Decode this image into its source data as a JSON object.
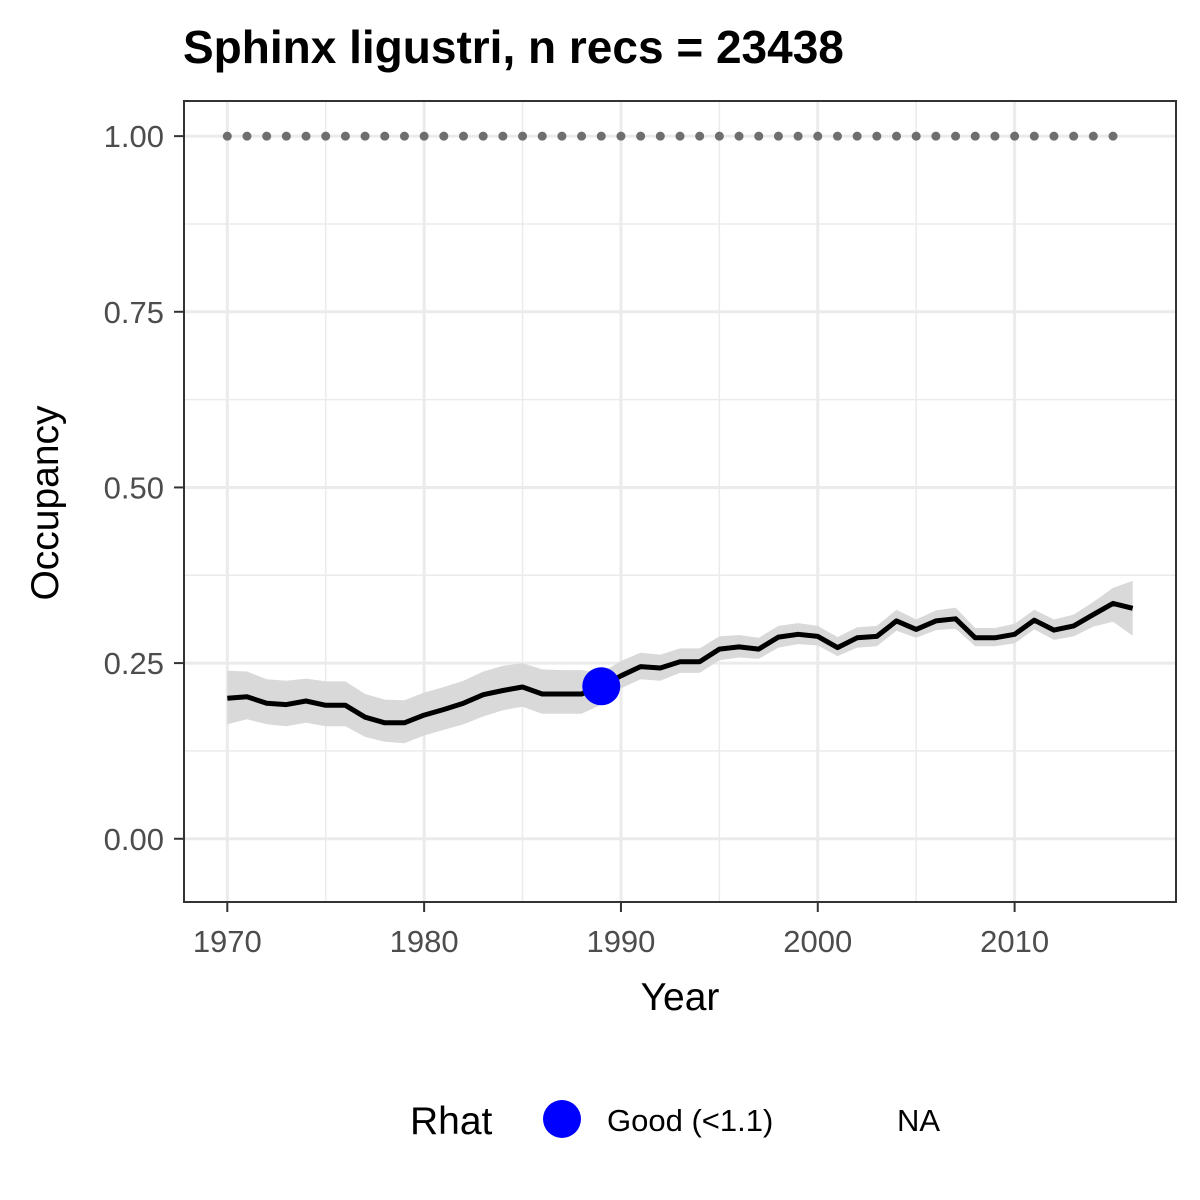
{
  "chart_data": {
    "type": "line",
    "title": "Sphinx ligustri, n recs = 23438",
    "xlabel": "Year",
    "ylabel": "Occupancy",
    "xlim": [
      1967.8,
      2018.2
    ],
    "ylim": [
      -0.09,
      1.05
    ],
    "x_ticks": [
      1970,
      1980,
      1990,
      2000,
      2010
    ],
    "x_tick_labels": [
      "1970",
      "1980",
      "1990",
      "2000",
      "2010"
    ],
    "y_ticks": [
      0,
      0.25,
      0.5,
      0.75,
      1.0
    ],
    "y_tick_labels": [
      "0.00",
      "0.25",
      "0.50",
      "0.75",
      "1.00"
    ],
    "grid": true,
    "colors": {
      "line": "#000000",
      "ribbon": "#d9d9d9",
      "reference_dots": "#6e6e6e",
      "good_point": "#0000ff",
      "panel_border": "#333333",
      "grid": "#ebebeb"
    },
    "series": [
      {
        "name": "Occupancy",
        "x": [
          1970,
          1971,
          1972,
          1973,
          1974,
          1975,
          1976,
          1977,
          1978,
          1979,
          1980,
          1981,
          1982,
          1983,
          1984,
          1985,
          1986,
          1987,
          1988,
          1989,
          1990,
          1991,
          1992,
          1993,
          1994,
          1995,
          1996,
          1997,
          1998,
          1999,
          2000,
          2001,
          2002,
          2003,
          2004,
          2005,
          2006,
          2007,
          2008,
          2009,
          2010,
          2011,
          2012,
          2013,
          2014,
          2015,
          2016
        ],
        "y": [
          0.2,
          0.202,
          0.193,
          0.191,
          0.196,
          0.19,
          0.19,
          0.173,
          0.165,
          0.165,
          0.176,
          0.184,
          0.193,
          0.205,
          0.211,
          0.216,
          0.206,
          0.206,
          0.206,
          0.217,
          0.232,
          0.245,
          0.243,
          0.252,
          0.252,
          0.27,
          0.273,
          0.27,
          0.287,
          0.291,
          0.288,
          0.272,
          0.286,
          0.288,
          0.31,
          0.298,
          0.31,
          0.313,
          0.286,
          0.286,
          0.291,
          0.311,
          0.297,
          0.303,
          0.319,
          0.335,
          0.328
        ],
        "lower": [
          0.163,
          0.17,
          0.163,
          0.16,
          0.165,
          0.16,
          0.16,
          0.145,
          0.138,
          0.136,
          0.147,
          0.155,
          0.163,
          0.174,
          0.183,
          0.188,
          0.178,
          0.178,
          0.178,
          0.191,
          0.214,
          0.227,
          0.225,
          0.236,
          0.236,
          0.254,
          0.258,
          0.256,
          0.272,
          0.277,
          0.275,
          0.26,
          0.272,
          0.274,
          0.296,
          0.286,
          0.297,
          0.299,
          0.274,
          0.274,
          0.278,
          0.298,
          0.283,
          0.288,
          0.302,
          0.309,
          0.289
        ],
        "upper": [
          0.239,
          0.238,
          0.227,
          0.225,
          0.228,
          0.224,
          0.224,
          0.206,
          0.198,
          0.197,
          0.208,
          0.216,
          0.225,
          0.238,
          0.246,
          0.25,
          0.241,
          0.24,
          0.24,
          0.236,
          0.253,
          0.265,
          0.262,
          0.271,
          0.271,
          0.288,
          0.29,
          0.286,
          0.303,
          0.307,
          0.303,
          0.287,
          0.301,
          0.303,
          0.326,
          0.312,
          0.325,
          0.329,
          0.3,
          0.3,
          0.306,
          0.326,
          0.312,
          0.319,
          0.337,
          0.357,
          0.367
        ]
      }
    ],
    "reference_points": {
      "y": 1.0,
      "x": [
        1970,
        1971,
        1972,
        1973,
        1974,
        1975,
        1976,
        1977,
        1978,
        1979,
        1980,
        1981,
        1982,
        1983,
        1984,
        1985,
        1986,
        1987,
        1988,
        1989,
        1990,
        1991,
        1992,
        1993,
        1994,
        1995,
        1996,
        1997,
        1998,
        1999,
        2000,
        2001,
        2002,
        2003,
        2004,
        2005,
        2006,
        2007,
        2008,
        2009,
        2010,
        2011,
        2012,
        2013,
        2014,
        2015
      ]
    },
    "highlight_points": [
      {
        "x": 1989,
        "y": 0.217,
        "rhat": "Good (<1.1)"
      }
    ],
    "legend": {
      "title": "Rhat",
      "position": "bottom",
      "entries": [
        {
          "label": "Good (<1.1)",
          "color": "#0000ff"
        },
        {
          "label": "NA",
          "color": ""
        }
      ]
    }
  }
}
